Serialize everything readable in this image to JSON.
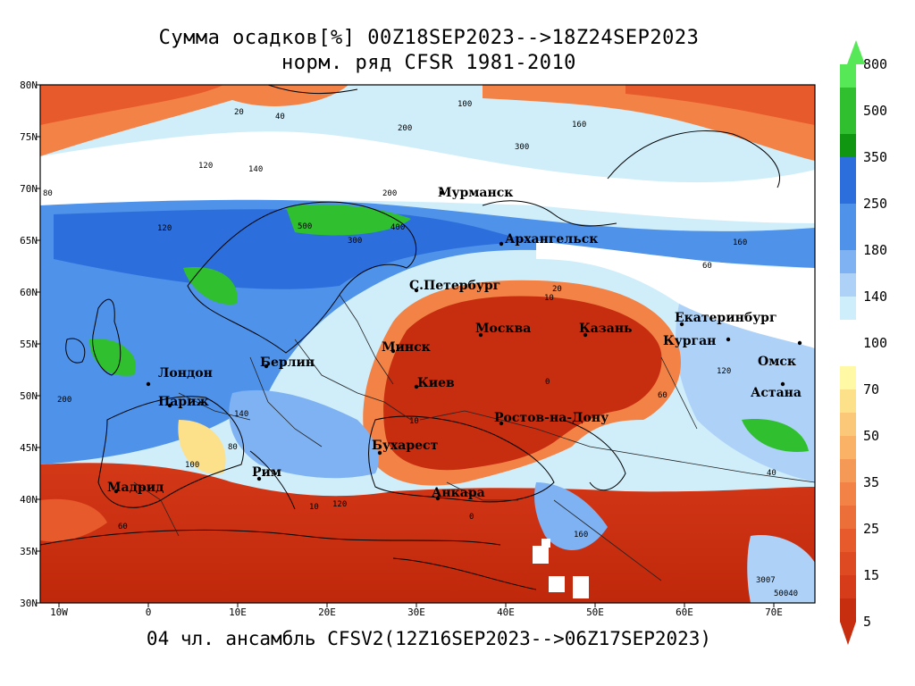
{
  "title_line1": "Сумма осадков[%] 00Z18SEP2023-->18Z24SEP2023",
  "title_line2": "норм. ряд CFSR 1981-2010",
  "footer": "04 чл. ансамбль CFSV2(12Z16SEP2023-->06Z17SEP2023)",
  "lat_labels": [
    "80N",
    "75N",
    "70N",
    "65N",
    "60N",
    "55N",
    "50N",
    "45N",
    "40N",
    "35N",
    "30N"
  ],
  "lon_labels": [
    "10W",
    "0",
    "10E",
    "20E",
    "30E",
    "40E",
    "50E",
    "60E",
    "70E"
  ],
  "colorbar": {
    "labels": [
      "800",
      "500",
      "350",
      "250",
      "180",
      "140",
      "100",
      "70",
      "50",
      "35",
      "25",
      "15",
      "5"
    ],
    "colors_upper": [
      "#56e856",
      "#2fbf2f",
      "#109610",
      "#2c6fdc",
      "#4f92ea",
      "#7fb2f2",
      "#aed2f7",
      "#cdeefa"
    ],
    "colors_lower": [
      "#fff9a6",
      "#fde08a",
      "#f9b266",
      "#f28246",
      "#e65a2c",
      "#d63c1a",
      "#c72d0f"
    ]
  },
  "cities": [
    {
      "name": "Мурманск"
    },
    {
      "name": "Архангельск"
    },
    {
      "name": "С.Петербург"
    },
    {
      "name": "Москва"
    },
    {
      "name": "Казань"
    },
    {
      "name": "Екатеринбург"
    },
    {
      "name": "Курган"
    },
    {
      "name": "Омск"
    },
    {
      "name": "Астана"
    },
    {
      "name": "Минск"
    },
    {
      "name": "Киев"
    },
    {
      "name": "Берлин"
    },
    {
      "name": "Лондон"
    },
    {
      "name": "Париж"
    },
    {
      "name": "Ростов-на-Дону"
    },
    {
      "name": "Бухарест"
    },
    {
      "name": "Рим"
    },
    {
      "name": "Мадрид"
    },
    {
      "name": "Анкара"
    }
  ],
  "contour_values": [
    "20",
    "40",
    "100",
    "160",
    "200",
    "120",
    "140",
    "300",
    "80",
    "200",
    "120",
    "500",
    "400",
    "300",
    "160",
    "60",
    "10",
    "20",
    "0",
    "10",
    "60",
    "120",
    "200",
    "140",
    "100",
    "80",
    "40",
    "10",
    "0",
    "120",
    "60",
    "160",
    "3007",
    "50040"
  ]
}
